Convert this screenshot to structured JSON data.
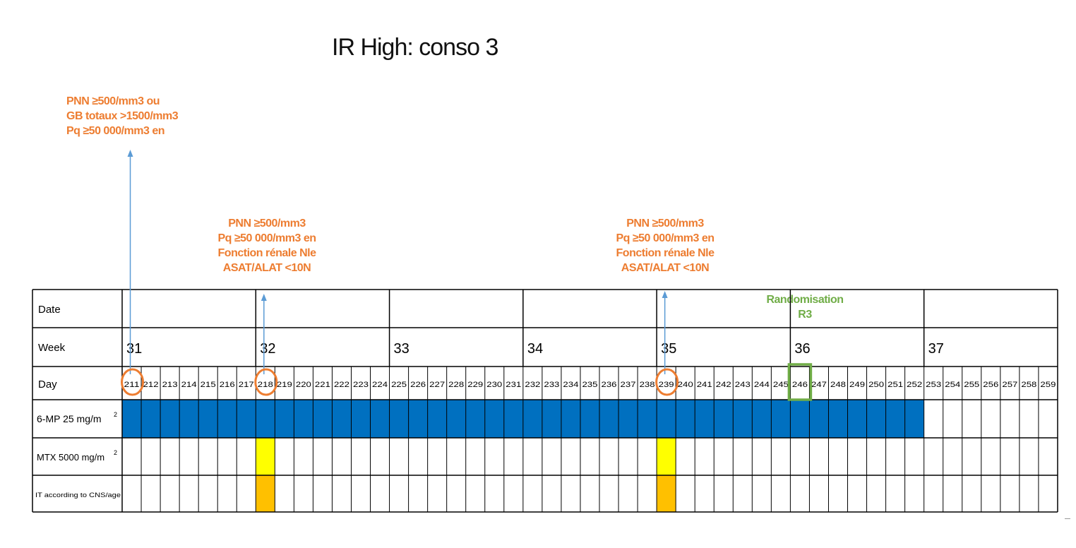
{
  "title": "IR High: conso 3",
  "notes": {
    "day211": [
      "PNN ≥500/mm3 ou",
      "GB totaux >1500/mm3",
      "Pq ≥50 000/mm3 en"
    ],
    "day218": [
      "PNN ≥500/mm3",
      "Pq ≥50 000/mm3 en",
      "Fonction rénale Nle",
      "ASAT/ALAT <10N"
    ],
    "day239": [
      "PNN ≥500/mm3",
      "Pq ≥50 000/mm3 en",
      "Fonction rénale Nle",
      "ASAT/ALAT <10N"
    ]
  },
  "randomisation": [
    "Randomisation",
    "R3"
  ],
  "table": {
    "row_labels": {
      "date": "Date",
      "week": "Week",
      "day": "Day",
      "mp": "6-MP 25 mg/m",
      "mp_sup": "2",
      "mtx": "MTX 5000 mg/m",
      "mtx_sup": "2",
      "it": "IT according to CNS/age"
    },
    "weeks": [
      "31",
      "32",
      "33",
      "34",
      "35",
      "36",
      "37"
    ],
    "days": [
      "211",
      "212",
      "213",
      "214",
      "215",
      "216",
      "217",
      "218",
      "219",
      "220",
      "221",
      "222",
      "223",
      "224",
      "225",
      "226",
      "227",
      "228",
      "229",
      "230",
      "231",
      "232",
      "233",
      "234",
      "235",
      "236",
      "237",
      "238",
      "239",
      "240",
      "241",
      "242",
      "243",
      "244",
      "245",
      "246",
      "247",
      "248",
      "249",
      "250",
      "251",
      "252",
      "253",
      "254",
      "255",
      "256",
      "257",
      "258",
      "259"
    ],
    "mp_days_range": [
      "211",
      "252"
    ],
    "mtx_days": [
      "218",
      "239"
    ],
    "it_days": [
      "218",
      "239"
    ],
    "circled_days": [
      "211",
      "218",
      "239"
    ],
    "boxed_days": [
      "246"
    ]
  },
  "colors": {
    "note": "#ED7D31",
    "arrow": "#5B9BD5",
    "mp_fill": "#0070C0",
    "mtx_fill": "#FFFF00",
    "it_fill": "#FFC000",
    "circle": "#ED7D31",
    "rando": "#70AD47",
    "grid_line": "#000000"
  }
}
